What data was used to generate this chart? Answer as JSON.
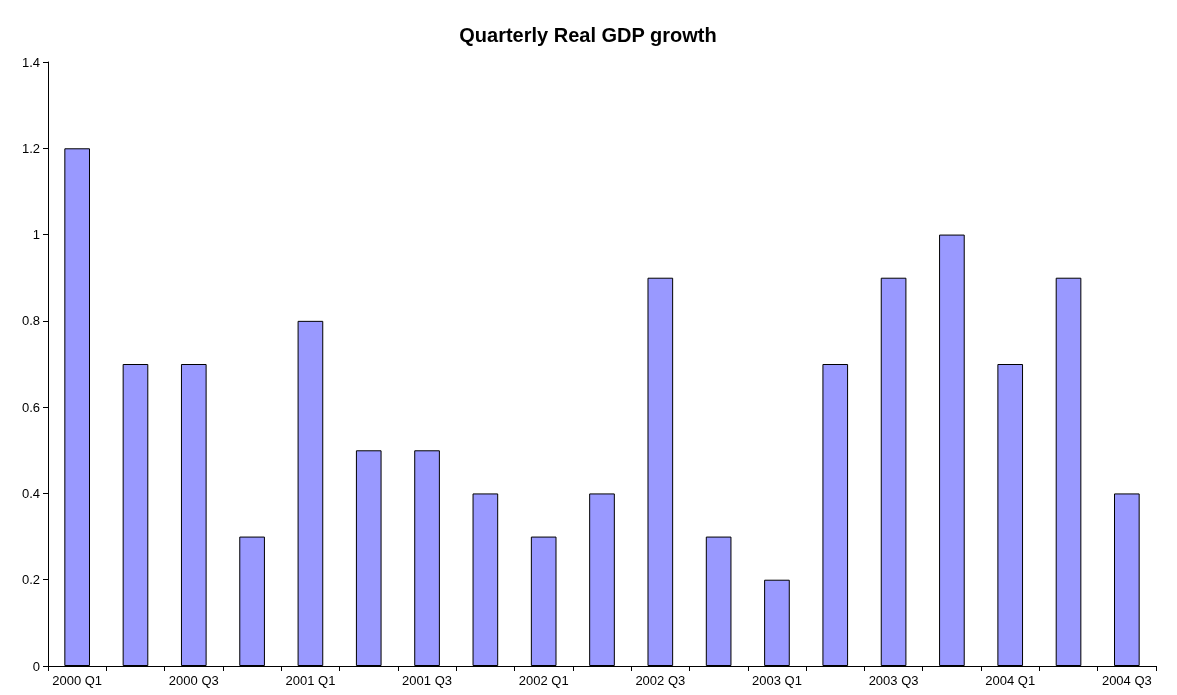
{
  "chart_data": {
    "type": "bar",
    "title": "Quarterly Real GDP growth",
    "categories": [
      "2000 Q1",
      null,
      "2000 Q3",
      null,
      "2001 Q1",
      null,
      "2001 Q3",
      null,
      "2002 Q1",
      null,
      "2002 Q3",
      null,
      "2003 Q1",
      null,
      "2003 Q3",
      null,
      "2004 Q1",
      null,
      "2004 Q3"
    ],
    "values": [
      1.2,
      0.7,
      0.7,
      0.3,
      0.8,
      0.5,
      0.5,
      0.4,
      0.3,
      0.4,
      0.9,
      0.3,
      0.2,
      0.7,
      0.9,
      1.0,
      0.7,
      0.9,
      0.4
    ],
    "color": "#9999ff",
    "ylim": [
      0,
      1.4
    ],
    "yticks": [
      0,
      0.2,
      0.4,
      0.6,
      0.8,
      1,
      1.2,
      1.4
    ],
    "grid": false
  }
}
